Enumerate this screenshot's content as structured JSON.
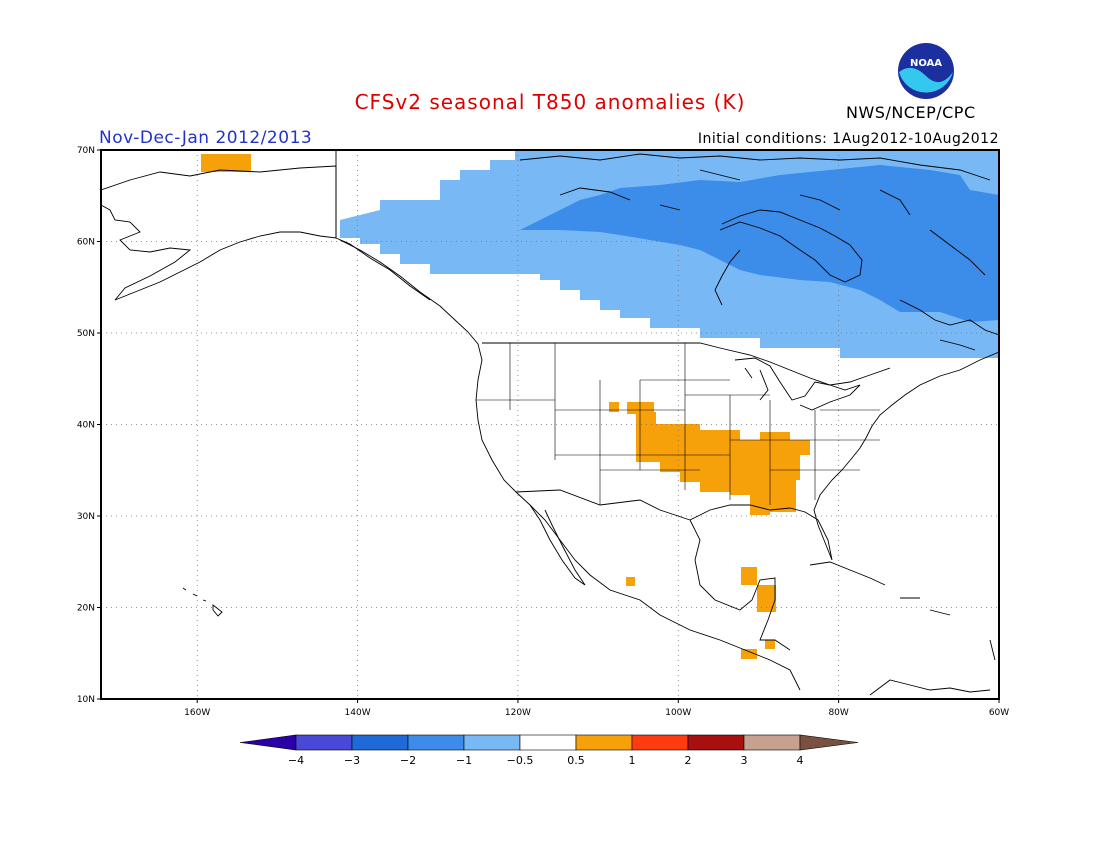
{
  "title": "CFSv2 seasonal T850 anomalies (K)",
  "period": "Nov-Dec-Jan 2012/2013",
  "initial_conditions": "Initial conditions: 1Aug2012-10Aug2012",
  "agency": "NWS/NCEP/CPC",
  "logo_text": "NOAA",
  "colors": {
    "title": "#dd0000",
    "period": "#2233cc",
    "neg_light": "#78b8f4",
    "neg_mid": "#3c8cea",
    "pos_light": "#f7a10a"
  },
  "map": {
    "lon_range": [
      -172,
      -60
    ],
    "lat_range": [
      10,
      70
    ],
    "lon_ticks": [
      {
        "value": -160,
        "label": "160W"
      },
      {
        "value": -140,
        "label": "140W"
      },
      {
        "value": -120,
        "label": "120W"
      },
      {
        "value": -100,
        "label": "100W"
      },
      {
        "value": -80,
        "label": "80W"
      },
      {
        "value": -60,
        "label": "60W"
      }
    ],
    "lat_ticks": [
      {
        "value": 10,
        "label": "10N"
      },
      {
        "value": 20,
        "label": "20N"
      },
      {
        "value": 30,
        "label": "30N"
      },
      {
        "value": 40,
        "label": "40N"
      },
      {
        "value": 50,
        "label": "50N"
      },
      {
        "value": 60,
        "label": "60N"
      },
      {
        "value": 70,
        "label": "70N"
      }
    ],
    "grid": "dotted"
  },
  "colorbar": {
    "levels": [
      "-4",
      "-3",
      "-2",
      "-1",
      "-0.5",
      "0.5",
      "1",
      "2",
      "3",
      "4"
    ],
    "colors": [
      "#2a00a8",
      "#4a48d8",
      "#1e6ad8",
      "#3c8cea",
      "#78b8f4",
      "#ffffff",
      "#f7a10a",
      "#ff3c10",
      "#a80f0f",
      "#c8a090",
      "#7a5040"
    ]
  },
  "anomaly_regions": [
    {
      "level": "-0.5 to -1",
      "area": "Canada, broad band 55N-70N"
    },
    {
      "level": "-1 to -2",
      "area": "Central and eastern Canada, Hudson Bay"
    },
    {
      "level": "0.5 to 1",
      "area": "Southern Plains and Southeast US"
    },
    {
      "level": "0.5 to 1",
      "area": "Yucatan, Central America, Alaska north coast"
    }
  ]
}
